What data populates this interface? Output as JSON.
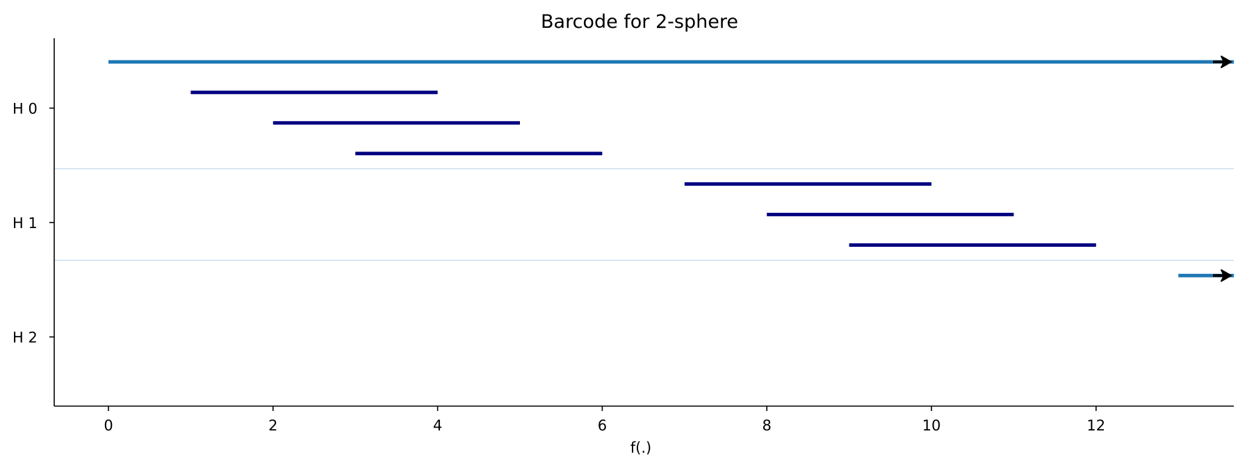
{
  "chart_data": {
    "type": "barcode",
    "title": "Barcode for 2-sphere",
    "xlabel": "f(.)",
    "ylabel": "",
    "xlim": [
      -0.65,
      13.6
    ],
    "x_ticks": [
      0,
      2,
      4,
      6,
      8,
      10,
      12
    ],
    "groups": [
      {
        "label": "H 0",
        "bars": [
          {
            "start": 0,
            "end": null,
            "infinite": true,
            "color": "#1f77b4"
          },
          {
            "start": 1,
            "end": 4,
            "infinite": false,
            "color": "#000080"
          },
          {
            "start": 2,
            "end": 5,
            "infinite": false,
            "color": "#000080"
          },
          {
            "start": 3,
            "end": 6,
            "infinite": false,
            "color": "#000080"
          }
        ]
      },
      {
        "label": "H 1",
        "bars": [
          {
            "start": 7,
            "end": 10,
            "infinite": false,
            "color": "#000080"
          },
          {
            "start": 8,
            "end": 11,
            "infinite": false,
            "color": "#000080"
          },
          {
            "start": 9,
            "end": 12,
            "infinite": false,
            "color": "#000080"
          }
        ]
      },
      {
        "label": "H 2",
        "bars": [
          {
            "start": 13,
            "end": null,
            "infinite": true,
            "color": "#1f77b4"
          }
        ]
      }
    ],
    "separator_color": "#c6dbef",
    "arrow_color": "#000000",
    "grid": false,
    "legend": "none"
  }
}
